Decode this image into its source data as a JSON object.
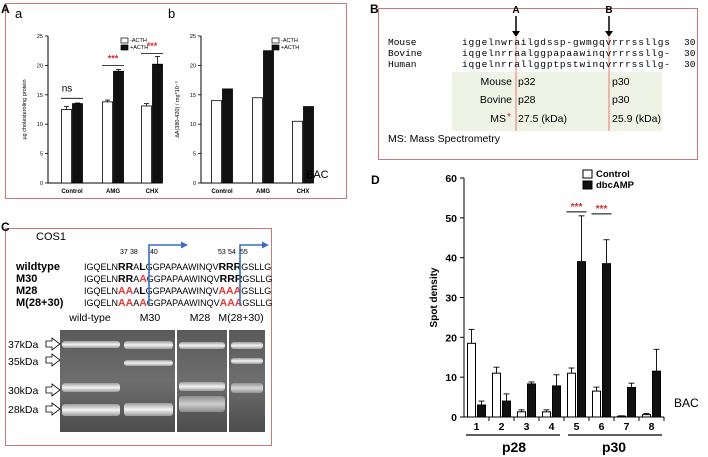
{
  "panelA": {
    "letter": "A",
    "chart_data": [
      {
        "type": "bar",
        "sublabel": "a",
        "ylabel": "µg cholesteroling protein",
        "ylim": [
          0,
          25
        ],
        "yticks": [
          "0",
          "5",
          "10",
          "15",
          "20",
          "25"
        ],
        "categories": [
          "Control",
          "AMG",
          "CHX"
        ],
        "series": [
          {
            "name": "-ACTH",
            "values": [
              12.5,
              13.8,
              13.1
            ],
            "errors": [
              0.5,
              0.3,
              0.4
            ]
          },
          {
            "name": "+ACTH",
            "values": [
              13.5,
              19.0,
              20.2
            ],
            "errors": [
              0.1,
              0.3,
              1.3
            ]
          }
        ],
        "annotations": [
          "ns",
          "***",
          "***"
        ]
      },
      {
        "type": "bar",
        "sublabel": "b",
        "ylabel": "∆A(380-420) / mg*10⁻³",
        "ylim": [
          0,
          25
        ],
        "yticks": [
          "0",
          "5",
          "10",
          "15",
          "20",
          "25"
        ],
        "categories": [
          "Control",
          "AMG",
          "CHX"
        ],
        "series": [
          {
            "name": "-ACTH",
            "values": [
              14.0,
              14.5,
              10.5
            ]
          },
          {
            "name": "+ACTH",
            "values": [
              16.0,
              22.5,
              13.0
            ]
          }
        ]
      }
    ],
    "bac_label": "BAC"
  },
  "panelB": {
    "letter": "B",
    "arrow_a": "A",
    "arrow_b": "B",
    "species": [
      "Mouse",
      "Bovine",
      "Human"
    ],
    "sequences": [
      "iggelnwrailgdssp-gwmgqvrrrssllgs",
      "iqgelnrraalggpapaawinqvrrrssllg-",
      "iqgelnrrallggptpstwinqvrrrssllg-"
    ],
    "counts": [
      "30",
      "30",
      "30"
    ],
    "table": [
      {
        "label": "Mouse",
        "left": "p32",
        "right": "p30"
      },
      {
        "label": "Bovine",
        "left": "p28",
        "right": "p30"
      },
      {
        "label": "MS",
        "star": "*",
        "left": "27.5 (kDa)",
        "right": "25.9 (kDa)"
      }
    ],
    "footnote": "MS: Mass Spectrometry"
  },
  "panelC": {
    "letter": "C",
    "cell_line": "COS1",
    "positions": [
      "37",
      "38",
      "40",
      "53",
      "54",
      "55"
    ],
    "rows": [
      {
        "name": "wildtype",
        "pre": "IGQELN",
        "m1": "RR",
        "mid1": "A",
        "k40": "L",
        "body": "GGPAPAAWINQV",
        "m2": "RR",
        "k55": "R",
        "tail": "GSLLG"
      },
      {
        "name": "M30",
        "pre": "IGQELN",
        "m1": "RR",
        "mid1": "A",
        "k40": "A",
        "body": "GGPAPAAWINQV",
        "m2": "RR",
        "k55": "R",
        "tail": "GSLLG"
      },
      {
        "name": "M28",
        "pre": "IGQELN",
        "m1": "AA",
        "mid1": "A",
        "k40": "L",
        "body": "GGPAPAAWINQV",
        "m2": "AA",
        "k55": "A",
        "tail": "GSLLG"
      },
      {
        "name": "M(28+30)",
        "pre": "IGQELN",
        "m1": "AA",
        "mid1": "A",
        "k40": "A",
        "body": "GGPAPAAWINQV",
        "m2": "AA",
        "k55": "A",
        "tail": "GSLLG"
      }
    ],
    "lanes": [
      "wild-type",
      "M30",
      "M28",
      "M(28+30)"
    ],
    "markers": [
      "37kDa",
      "35kDa",
      "30kDa",
      "28kDa"
    ]
  },
  "panelD": {
    "letter": "D",
    "chart_data": {
      "type": "bar",
      "ylabel": "Spot density",
      "ylim": [
        0,
        60
      ],
      "yticks": [
        "0",
        "10",
        "20",
        "30",
        "40",
        "50",
        "60"
      ],
      "categories": [
        "1",
        "2",
        "3",
        "4",
        "5",
        "6",
        "7",
        "8"
      ],
      "series": [
        {
          "name": "Control",
          "values": [
            18.5,
            11.0,
            1.3,
            1.3,
            11.0,
            6.5,
            0.2,
            0.6
          ],
          "errors": [
            3.5,
            1.5,
            0.5,
            0.5,
            1.3,
            1.0,
            0.1,
            0.3
          ]
        },
        {
          "name": "dbcAMP",
          "values": [
            3.0,
            4.0,
            8.3,
            7.8,
            39.0,
            38.5,
            7.4,
            11.5
          ],
          "errors": [
            1.0,
            1.8,
            0.5,
            2.8,
            11.5,
            6.0,
            1.1,
            5.5
          ]
        }
      ],
      "groups": [
        "p28",
        "p30"
      ],
      "significance": [
        "***",
        "***"
      ],
      "bac_label": "BAC"
    }
  }
}
